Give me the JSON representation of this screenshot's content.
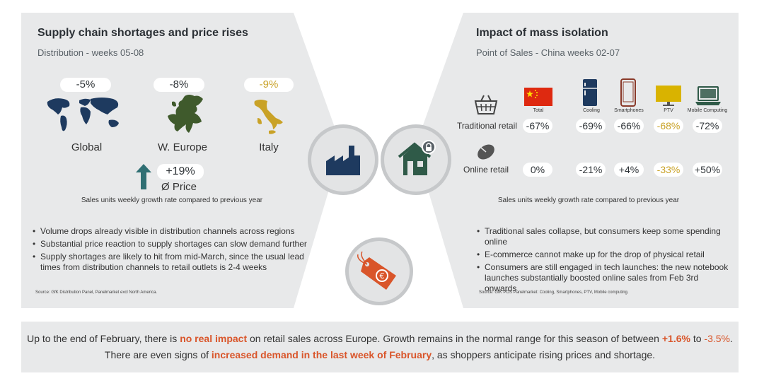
{
  "left": {
    "title": "Supply chain shortages and price rises",
    "subtitle": "Distribution - weeks 05-08",
    "regions": [
      {
        "name": "Global",
        "value": "-5%",
        "icon": "world-map-icon"
      },
      {
        "name": "W. Europe",
        "value": "-8%",
        "icon": "europe-map-icon"
      },
      {
        "name": "Italy",
        "value": "-9%",
        "icon": "italy-map-icon"
      }
    ],
    "price": {
      "value": "+19%",
      "label": "Ø Price"
    },
    "note": "Sales units weekly growth rate compared to previous year",
    "bullets": [
      "Volume drops already visible in distribution channels across regions",
      "Substantial price reaction to supply shortages can slow demand further",
      "Supply shortages are likely to hit from mid-March, since the usual lead times from distribution channels to retail outlets is 2-4 weeks"
    ],
    "source": "Source: GfK Distribution Panel, Panelmarket excl North America."
  },
  "right": {
    "title": "Impact of mass isolation",
    "subtitle": "Point of Sales - China weeks 02-07",
    "columns": [
      "Total",
      "Cooling",
      "Smartphones",
      "PTV",
      "Mobile Computing"
    ],
    "rows": [
      {
        "label": "Traditional retail",
        "values": [
          "-67%",
          "-69%",
          "-66%",
          "-68%",
          "-72%"
        ]
      },
      {
        "label": "Online retail",
        "values": [
          "0%",
          "-21%",
          "+4%",
          "-33%",
          "+50%"
        ]
      }
    ],
    "note": "Sales units weekly growth rate compared to previous year",
    "bullets": [
      "Traditional sales collapse, but consumers keep some spending online",
      "E-commerce cannot make up for the drop of physical retail",
      "Consumers are still engaged in tech launches: the new notebook launches substantially boosted online sales from Feb 3rd onwards"
    ],
    "source": "Source: GfK POS Panelmarket: Cooling, Smartphones, PTV, Mobile computing."
  },
  "bottom": {
    "l1a": "Up to the end of February, there is ",
    "l1b": "no real impact",
    "l1c": " on retail sales across Europe. Growth remains in the normal range for this season of between ",
    "l1d": "+1.6%",
    "l1e": " to ",
    "l1f": "-3.5%",
    "l1g": ".",
    "l2a": "There are even signs of ",
    "l2b": "increased demand in the last week of February",
    "l2c": ", as shoppers anticipate rising prices and shortage."
  },
  "colors": {
    "accent": "#d9552a",
    "teal": "#2f6f73",
    "navy": "#1e3a5f",
    "gold": "#c9a227",
    "panel": "#e8e9ea"
  }
}
